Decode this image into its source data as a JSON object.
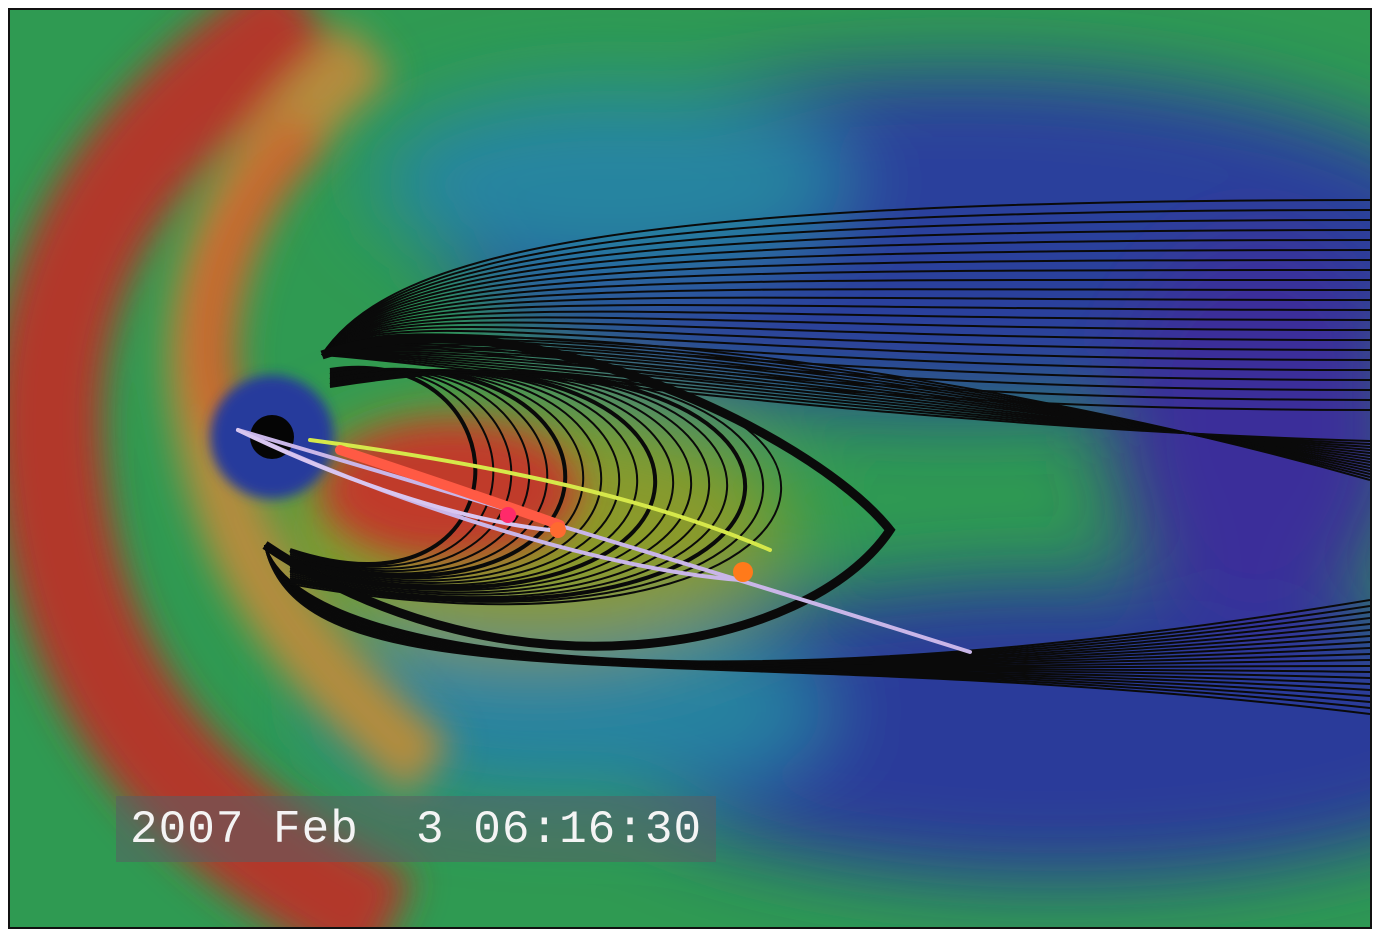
{
  "timestamp": "2007 Feb  3 06:16:30"
}
